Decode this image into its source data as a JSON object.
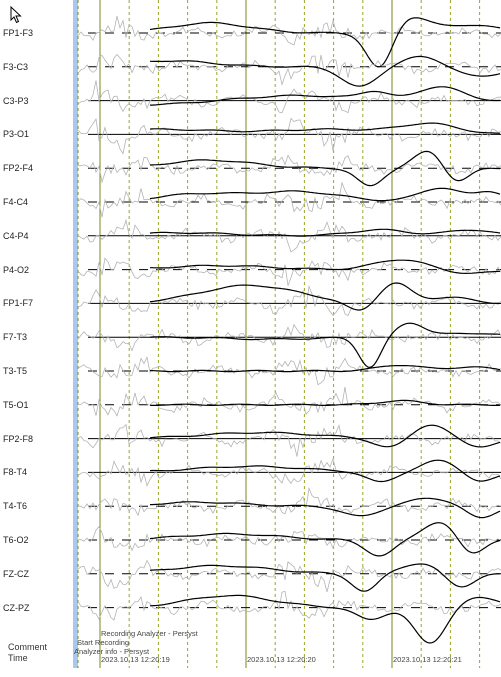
{
  "channels": [
    "FP1-F3",
    "F3-C3",
    "C3-P3",
    "P3-O1",
    "FP2-F4",
    "F4-C4",
    "C4-P4",
    "P4-O2",
    "FP1-F7",
    "F7-T3",
    "T3-T5",
    "T5-O1",
    "FP2-F8",
    "F8-T4",
    "T4-T6",
    "T6-O2",
    "FZ-CZ",
    "CZ-PZ"
  ],
  "footer": {
    "comment_label": "Comment",
    "time_label": "Time"
  },
  "comments": {
    "recording_analyzer": "Recording Analyzer - Persyst",
    "start_recording": "Start Recording",
    "analyzer_info": "Analyzer info - Persyst"
  },
  "timestamps": [
    "2023.10.13 12:20:19",
    "2023.10.13 12:20:20",
    "2023.10.13 12:20:21"
  ],
  "colors": {
    "trace": "#000000",
    "artifact_trace": "#b4b4b4",
    "second_gridline": "#7a8a1e",
    "sub_gridline": "#9aa62a",
    "baseline": "#000000",
    "left_bar": "#a9c8f0"
  },
  "icons": {
    "cursor": "mouse-pointer-icon"
  }
}
